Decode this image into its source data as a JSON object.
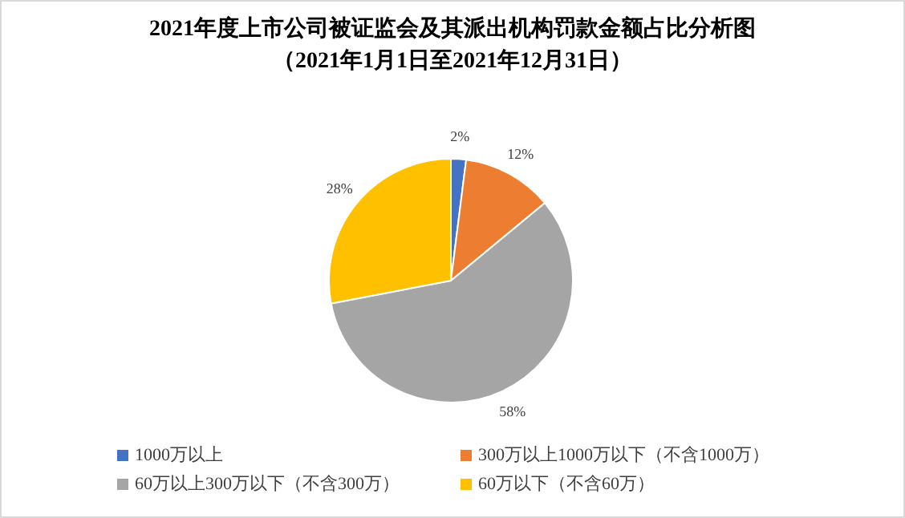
{
  "chart_data": {
    "type": "pie",
    "title": "2021年度上市公司被证监会及其派出机构罚款金额占比分析图",
    "subtitle": "（2021年1月1日至2021年12月31日）",
    "categories": [
      "1000万以上",
      "300万以上1000万以下（不含1000万）",
      "60万以上300万以下（不含300万）",
      "60万以下（不含60万）"
    ],
    "values": [
      2,
      12,
      58,
      28
    ],
    "colors": [
      "#4472c4",
      "#ed7d31",
      "#a5a5a5",
      "#ffc000"
    ],
    "value_labels": [
      "2%",
      "12%",
      "58%",
      "28%"
    ],
    "legend": "bottom"
  }
}
